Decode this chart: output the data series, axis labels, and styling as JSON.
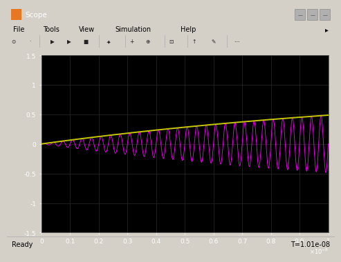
{
  "title": "Scope",
  "xlabel_sci": "\\times10^{-8}",
  "xtick_labels": [
    "0",
    "0.1",
    "0.2",
    "0.3",
    "0.4",
    "0.5",
    "0.6",
    "0.7",
    "0.8",
    "0.9",
    "1"
  ],
  "xlim": [
    0,
    1e-08
  ],
  "ylim": [
    -1.5,
    1.5
  ],
  "bg_color": "#000000",
  "window_bg": "#d4d0c8",
  "envelope_color": "#c8c800",
  "signal_color": "#ff00ff",
  "grid_color": "#2a2a2a",
  "status_bar_text": "Ready",
  "time_text": "T=1.01e-08",
  "carrier_freq": 3000000000.0,
  "envelope_tau": 1.5e-08,
  "num_points": 8000,
  "title_bar_color": "#6b8eb5",
  "title_bar_text_color": "white"
}
